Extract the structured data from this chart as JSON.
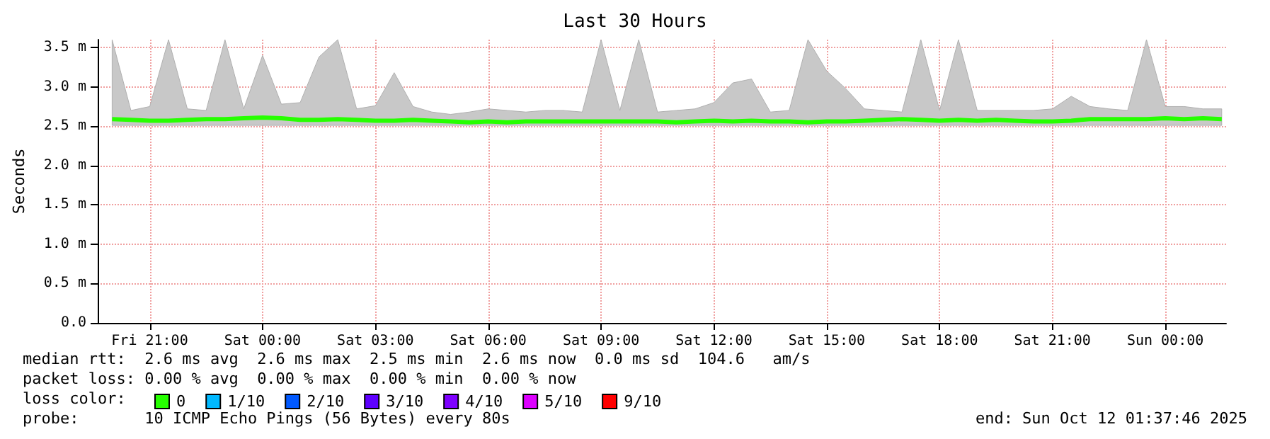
{
  "chart_data": {
    "type": "line",
    "title": "Last 30 Hours",
    "ylabel": "Seconds",
    "legend_title": "loss color:",
    "xlim": [
      "2025-10-10T19:37",
      "2025-10-12T01:37"
    ],
    "xticks": [
      {
        "value": "2025-10-10T21:00",
        "label": "Fri 21:00"
      },
      {
        "value": "2025-10-11T00:00",
        "label": "Sat 00:00"
      },
      {
        "value": "2025-10-11T03:00",
        "label": "Sat 03:00"
      },
      {
        "value": "2025-10-11T06:00",
        "label": "Sat 06:00"
      },
      {
        "value": "2025-10-11T09:00",
        "label": "Sat 09:00"
      },
      {
        "value": "2025-10-11T12:00",
        "label": "Sat 12:00"
      },
      {
        "value": "2025-10-11T15:00",
        "label": "Sat 15:00"
      },
      {
        "value": "2025-10-11T18:00",
        "label": "Sat 18:00"
      },
      {
        "value": "2025-10-11T21:00",
        "label": "Sat 21:00"
      },
      {
        "value": "2025-10-12T00:00",
        "label": "Sun 00:00"
      }
    ],
    "ylim": [
      0,
      3.6
    ],
    "yticks": [
      {
        "value": 0,
        "label": "0.0"
      },
      {
        "value": 0.5,
        "label": "0.5 m"
      },
      {
        "value": 1,
        "label": "1.0 m"
      },
      {
        "value": 1.5,
        "label": "1.5 m"
      },
      {
        "value": 2,
        "label": "2.0 m"
      },
      {
        "value": 2.5,
        "label": "2.5 m"
      },
      {
        "value": 3,
        "label": "3.0 m"
      },
      {
        "value": 3.5,
        "label": "3.5 m"
      }
    ],
    "x": [
      "2025-10-10T20:00",
      "2025-10-10T20:30",
      "2025-10-10T21:00",
      "2025-10-10T21:30",
      "2025-10-10T22:00",
      "2025-10-10T22:30",
      "2025-10-10T23:00",
      "2025-10-10T23:30",
      "2025-10-11T00:00",
      "2025-10-11T00:30",
      "2025-10-11T01:00",
      "2025-10-11T01:30",
      "2025-10-11T02:00",
      "2025-10-11T02:30",
      "2025-10-11T03:00",
      "2025-10-11T03:30",
      "2025-10-11T04:00",
      "2025-10-11T04:30",
      "2025-10-11T05:00",
      "2025-10-11T05:30",
      "2025-10-11T06:00",
      "2025-10-11T06:30",
      "2025-10-11T07:00",
      "2025-10-11T07:30",
      "2025-10-11T08:00",
      "2025-10-11T08:30",
      "2025-10-11T09:00",
      "2025-10-11T09:30",
      "2025-10-11T10:00",
      "2025-10-11T10:30",
      "2025-10-11T11:00",
      "2025-10-11T11:30",
      "2025-10-11T12:00",
      "2025-10-11T12:30",
      "2025-10-11T13:00",
      "2025-10-11T13:30",
      "2025-10-11T14:00",
      "2025-10-11T14:30",
      "2025-10-11T15:00",
      "2025-10-11T15:30",
      "2025-10-11T16:00",
      "2025-10-11T16:30",
      "2025-10-11T17:00",
      "2025-10-11T17:30",
      "2025-10-11T18:00",
      "2025-10-11T18:30",
      "2025-10-11T19:00",
      "2025-10-11T19:30",
      "2025-10-11T20:00",
      "2025-10-11T20:30",
      "2025-10-11T21:00",
      "2025-10-11T21:30",
      "2025-10-11T22:00",
      "2025-10-11T22:30",
      "2025-10-11T23:00",
      "2025-10-11T23:30",
      "2025-10-12T00:00",
      "2025-10-12T00:30",
      "2025-10-12T01:00",
      "2025-10-12T01:30"
    ],
    "series": [
      {
        "name": "0",
        "color": "#26ff00",
        "values": [
          2.59,
          2.58,
          2.57,
          2.57,
          2.58,
          2.59,
          2.59,
          2.6,
          2.61,
          2.6,
          2.58,
          2.58,
          2.59,
          2.58,
          2.57,
          2.57,
          2.58,
          2.57,
          2.56,
          2.55,
          2.56,
          2.55,
          2.56,
          2.56,
          2.56,
          2.56,
          2.56,
          2.56,
          2.56,
          2.56,
          2.55,
          2.56,
          2.57,
          2.56,
          2.57,
          2.56,
          2.56,
          2.55,
          2.56,
          2.56,
          2.57,
          2.58,
          2.59,
          2.58,
          2.57,
          2.58,
          2.57,
          2.58,
          2.57,
          2.56,
          2.56,
          2.57,
          2.59,
          2.59,
          2.59,
          2.59,
          2.6,
          2.59,
          2.6,
          2.59
        ],
        "lower": [
          2.51,
          2.51,
          2.51,
          2.51,
          2.51,
          2.51,
          2.51,
          2.51,
          2.51,
          2.51,
          2.51,
          2.51,
          2.51,
          2.51,
          2.51,
          2.51,
          2.51,
          2.51,
          2.51,
          2.51,
          2.51,
          2.51,
          2.51,
          2.51,
          2.51,
          2.51,
          2.51,
          2.51,
          2.51,
          2.51,
          2.51,
          2.51,
          2.51,
          2.51,
          2.51,
          2.51,
          2.51,
          2.51,
          2.51,
          2.51,
          2.51,
          2.51,
          2.51,
          2.51,
          2.51,
          2.51,
          2.51,
          2.51,
          2.51,
          2.51,
          2.51,
          2.51,
          2.51,
          2.51,
          2.51,
          2.51,
          2.51,
          2.51,
          2.51,
          2.51
        ],
        "upper": [
          3.6,
          2.7,
          2.75,
          3.6,
          2.72,
          2.7,
          3.6,
          2.72,
          3.4,
          2.78,
          2.8,
          3.38,
          3.6,
          2.72,
          2.76,
          3.18,
          2.75,
          2.68,
          2.65,
          2.68,
          2.72,
          2.7,
          2.68,
          2.7,
          2.7,
          2.68,
          3.6,
          2.7,
          3.6,
          2.68,
          2.7,
          2.72,
          2.8,
          3.05,
          3.1,
          2.68,
          2.7,
          3.6,
          3.2,
          2.98,
          2.72,
          2.7,
          2.68,
          3.6,
          2.7,
          3.6,
          2.7,
          2.7,
          2.7,
          2.7,
          2.72,
          2.88,
          2.75,
          2.72,
          2.7,
          3.6,
          2.75,
          2.75,
          2.72,
          2.72
        ]
      },
      {
        "name": "1/10",
        "color": "#00b8ff",
        "values": [
          null,
          null,
          null,
          null,
          null,
          null,
          null,
          null,
          null,
          null,
          null,
          null,
          null,
          null,
          null,
          null,
          null,
          null,
          null,
          null,
          null,
          null,
          null,
          null,
          null,
          null,
          null,
          null,
          null,
          null,
          null,
          null,
          null,
          null,
          null,
          null,
          null,
          null,
          null,
          null,
          null,
          null,
          null,
          null,
          null,
          null,
          null,
          null,
          null,
          null,
          null,
          null,
          null,
          null,
          null,
          null,
          null,
          null,
          null,
          null
        ]
      },
      {
        "name": "2/10",
        "color": "#0059ff",
        "values": [
          null,
          null,
          null,
          null,
          null,
          null,
          null,
          null,
          null,
          null,
          null,
          null,
          null,
          null,
          null,
          null,
          null,
          null,
          null,
          null,
          null,
          null,
          null,
          null,
          null,
          null,
          null,
          null,
          null,
          null,
          null,
          null,
          null,
          null,
          null,
          null,
          null,
          null,
          null,
          null,
          null,
          null,
          null,
          null,
          null,
          null,
          null,
          null,
          null,
          null,
          null,
          null,
          null,
          null,
          null,
          null,
          null,
          null,
          null,
          null
        ]
      },
      {
        "name": "3/10",
        "color": "#5e00ff",
        "values": [
          null,
          null,
          null,
          null,
          null,
          null,
          null,
          null,
          null,
          null,
          null,
          null,
          null,
          null,
          null,
          null,
          null,
          null,
          null,
          null,
          null,
          null,
          null,
          null,
          null,
          null,
          null,
          null,
          null,
          null,
          null,
          null,
          null,
          null,
          null,
          null,
          null,
          null,
          null,
          null,
          null,
          null,
          null,
          null,
          null,
          null,
          null,
          null,
          null,
          null,
          null,
          null,
          null,
          null,
          null,
          null,
          null,
          null,
          null,
          null
        ]
      },
      {
        "name": "4/10",
        "color": "#7e00ff",
        "values": [
          null,
          null,
          null,
          null,
          null,
          null,
          null,
          null,
          null,
          null,
          null,
          null,
          null,
          null,
          null,
          null,
          null,
          null,
          null,
          null,
          null,
          null,
          null,
          null,
          null,
          null,
          null,
          null,
          null,
          null,
          null,
          null,
          null,
          null,
          null,
          null,
          null,
          null,
          null,
          null,
          null,
          null,
          null,
          null,
          null,
          null,
          null,
          null,
          null,
          null,
          null,
          null,
          null,
          null,
          null,
          null,
          null,
          null,
          null,
          null
        ]
      },
      {
        "name": "5/10",
        "color": "#dd00ff",
        "values": [
          null,
          null,
          null,
          null,
          null,
          null,
          null,
          null,
          null,
          null,
          null,
          null,
          null,
          null,
          null,
          null,
          null,
          null,
          null,
          null,
          null,
          null,
          null,
          null,
          null,
          null,
          null,
          null,
          null,
          null,
          null,
          null,
          null,
          null,
          null,
          null,
          null,
          null,
          null,
          null,
          null,
          null,
          null,
          null,
          null,
          null,
          null,
          null,
          null,
          null,
          null,
          null,
          null,
          null,
          null,
          null,
          null,
          null,
          null,
          null
        ]
      },
      {
        "name": "9/10",
        "color": "#ff0000",
        "values": [
          null,
          null,
          null,
          null,
          null,
          null,
          null,
          null,
          null,
          null,
          null,
          null,
          null,
          null,
          null,
          null,
          null,
          null,
          null,
          null,
          null,
          null,
          null,
          null,
          null,
          null,
          null,
          null,
          null,
          null,
          null,
          null,
          null,
          null,
          null,
          null,
          null,
          null,
          null,
          null,
          null,
          null,
          null,
          null,
          null,
          null,
          null,
          null,
          null,
          null,
          null,
          null,
          null,
          null,
          null,
          null,
          null,
          null,
          null,
          null
        ]
      }
    ],
    "grid": true,
    "legend": "bottom left",
    "annotations": [
      "median rtt:  2.6 ms avg  2.6 ms max  2.5 ms min  2.6 ms now  0.0 ms sd  104.6   am/s",
      "packet loss: 0.00 % avg  0.00 % max  0.00 % min  0.00 % now",
      "probe:       10 ICMP Echo Pings (56 Bytes) every 80s",
      "end: Sun Oct 12 01:37:46 2025"
    ]
  }
}
